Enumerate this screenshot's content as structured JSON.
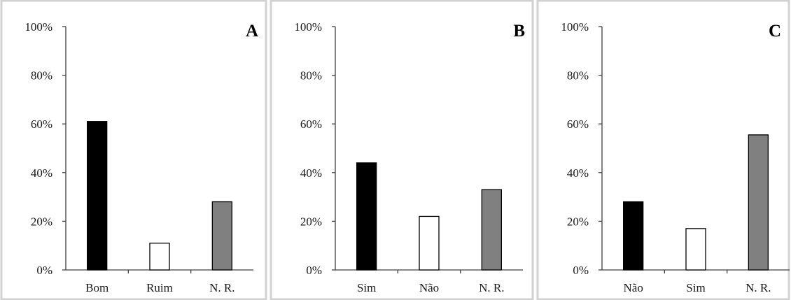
{
  "chart_data": [
    {
      "type": "bar",
      "panel_label": "A",
      "categories": [
        "Bom",
        "Ruim",
        "N. R."
      ],
      "values": [
        61,
        11,
        28
      ],
      "bar_colors": [
        "#000000",
        "#ffffff",
        "#808080"
      ],
      "y_ticks": [
        "0%",
        "20%",
        "40%",
        "60%",
        "80%",
        "100%"
      ],
      "ylim": [
        0,
        100
      ],
      "grid": false,
      "legend": "none"
    },
    {
      "type": "bar",
      "panel_label": "B",
      "categories": [
        "Sim",
        "Não",
        "N. R."
      ],
      "values": [
        44,
        22,
        33
      ],
      "bar_colors": [
        "#000000",
        "#ffffff",
        "#808080"
      ],
      "y_ticks": [
        "0%",
        "20%",
        "40%",
        "60%",
        "80%",
        "100%"
      ],
      "ylim": [
        0,
        100
      ],
      "grid": false,
      "legend": "none"
    },
    {
      "type": "bar",
      "panel_label": "C",
      "categories": [
        "Não",
        "Sim",
        "N. R."
      ],
      "values": [
        28,
        17,
        55.5
      ],
      "bar_colors": [
        "#000000",
        "#ffffff",
        "#808080"
      ],
      "y_ticks": [
        "0%",
        "20%",
        "40%",
        "60%",
        "80%",
        "100%"
      ],
      "ylim": [
        0,
        100
      ],
      "grid": false,
      "legend": "none"
    }
  ]
}
